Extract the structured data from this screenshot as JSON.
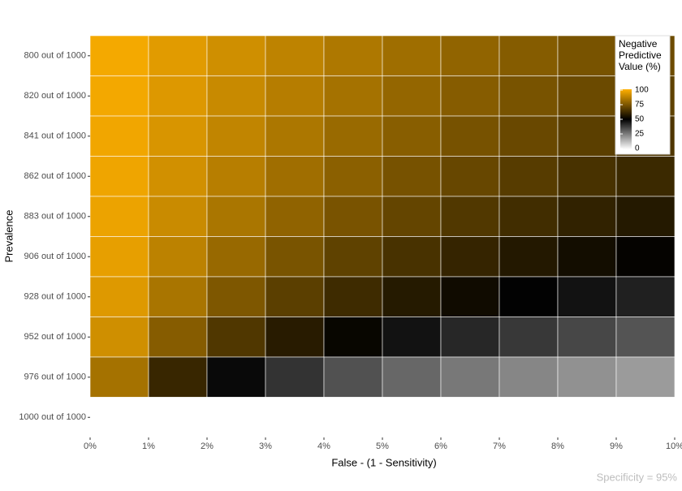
{
  "chart_data": {
    "type": "heatmap",
    "x_label": "False - (1 - Sensitivity)",
    "y_label": "Prevalence",
    "caption": "Specificity = 95%",
    "x": [
      0.5,
      1.5,
      2.5,
      3.5,
      4.5,
      5.5,
      6.5,
      7.5,
      8.5,
      9.5
    ],
    "cell_width": 1,
    "xlim": [
      0,
      10
    ],
    "xticks": [
      {
        "value": 0,
        "label": "0%"
      },
      {
        "value": 1,
        "label": "1%"
      },
      {
        "value": 2,
        "label": "2%"
      },
      {
        "value": 3,
        "label": "3%"
      },
      {
        "value": 4,
        "label": "4%"
      },
      {
        "value": 5,
        "label": "5%"
      },
      {
        "value": 6,
        "label": "6%"
      },
      {
        "value": 7,
        "label": "7%"
      },
      {
        "value": 8,
        "label": "8%"
      },
      {
        "value": 9,
        "label": "9%"
      },
      {
        "value": 10,
        "label": "10%"
      }
    ],
    "categories": [
      "800 out of 1000",
      "820 out of 1000",
      "841 out of 1000",
      "862 out of 1000",
      "883 out of 1000",
      "906 out of 1000",
      "928 out of 1000",
      "952 out of 1000",
      "976 out of 1000",
      "1000 out of 1000"
    ],
    "values": [
      [
        97.9,
        94.1,
        90.5,
        87.2,
        84.1,
        81.2,
        78.5,
        76.0,
        73.6,
        71.4
      ],
      [
        97.7,
        93.3,
        89.3,
        85.6,
        82.3,
        79.1,
        76.2,
        73.5,
        71.0,
        68.7
      ],
      [
        97.3,
        92.3,
        87.8,
        83.7,
        80.0,
        76.6,
        73.4,
        70.5,
        67.9,
        65.4
      ],
      [
        96.8,
        91.0,
        85.9,
        81.3,
        77.2,
        73.4,
        70.1,
        67.0,
        64.1,
        61.6
      ],
      [
        96.2,
        89.4,
        83.4,
        78.2,
        73.7,
        69.6,
        65.9,
        62.7,
        59.7,
        57.0
      ],
      [
        95.2,
        86.8,
        79.8,
        73.8,
        68.7,
        64.2,
        60.3,
        56.8,
        53.7,
        50.9
      ],
      [
        93.6,
        83.1,
        74.7,
        67.8,
        62.1,
        57.3,
        53.1,
        49.6,
        46.4,
        43.7
      ],
      [
        90.5,
        76.2,
        65.7,
        57.8,
        51.6,
        46.5,
        42.4,
        39.0,
        36.0,
        33.5
      ],
      [
        82.4,
        60.9,
        48.3,
        40.0,
        34.2,
        29.8,
        26.4,
        23.8,
        21.6,
        19.7
      ],
      [
        0,
        0,
        0,
        0,
        0,
        0,
        0,
        0,
        0,
        0
      ]
    ],
    "legend": {
      "title": "Negative Predictive Value (%)",
      "limits": [
        0,
        100
      ],
      "ticks": [
        0,
        25,
        50,
        75,
        100
      ],
      "colors": [
        "#ffffff",
        "#000000",
        "#ffb000"
      ]
    }
  }
}
